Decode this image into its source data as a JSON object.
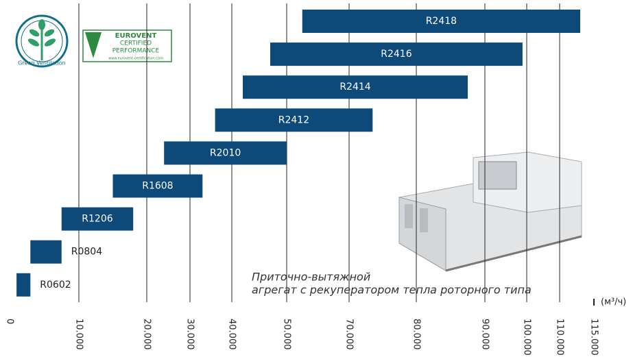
{
  "chart_data": {
    "type": "range_bar",
    "categories": [
      "R2418",
      "R2416",
      "R2414",
      "R2412",
      "R2010",
      "R1608",
      "R1206",
      "R0804",
      "R0602"
    ],
    "starts": [
      55000,
      47000,
      42000,
      36000,
      24000,
      15000,
      7500,
      3000,
      1000
    ],
    "ends": [
      113000,
      99000,
      87500,
      73500,
      50000,
      33000,
      18000,
      7500,
      3000
    ],
    "color": "#0d4a7a",
    "xlim": [
      0,
      115000
    ],
    "xticks": [
      0,
      {
        "value": 10000,
        "label": "10.000"
      },
      {
        "value": 20000,
        "label": "20.000"
      },
      {
        "value": 30000,
        "label": "30.000"
      },
      {
        "value": 40000,
        "label": "40.000"
      },
      {
        "value": 50000,
        "label": "50.000"
      },
      {
        "value": 70000,
        "label": "70.000"
      },
      {
        "value": 80000,
        "label": "80.000"
      },
      {
        "value": 90000,
        "label": "90.000"
      },
      {
        "value": 100000,
        "label": "100.000"
      },
      {
        "value": 110000,
        "label": "110.000"
      },
      {
        "value": 115000,
        "label": "115.000"
      }
    ],
    "x_unit": "(м³/ч)",
    "grid": true,
    "annotation": [
      "Приточно-вытяжной",
      "агрегат с рекуператором тепла роторного типа"
    ]
  },
  "logos": [
    "Green Ventilation",
    "EUROVENT",
    "CERTIFIED",
    "PERFORMANCE",
    "www.eurovent-certification.com"
  ]
}
